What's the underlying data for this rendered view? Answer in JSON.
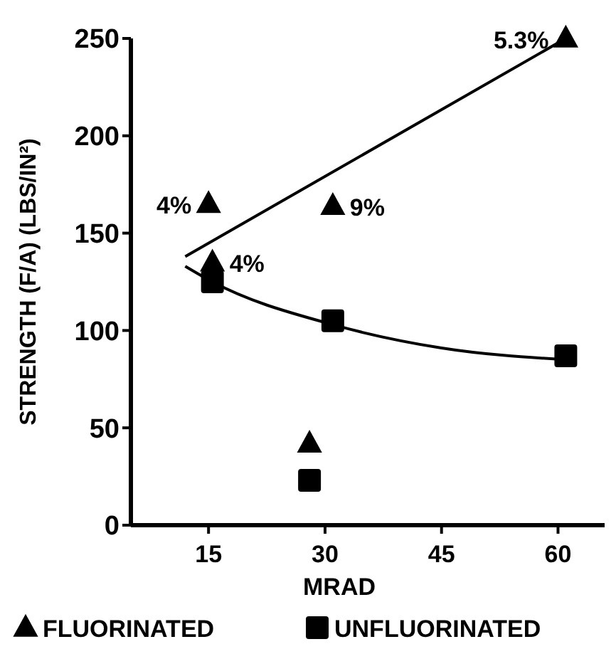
{
  "chart_data": {
    "type": "scatter",
    "xlabel": "MRAD",
    "ylabel": "STRENGTH (F/A)  (LBS/IN²)",
    "xlim": [
      5,
      66
    ],
    "xticks": [
      15,
      30,
      45,
      60
    ],
    "ylim": [
      0,
      250
    ],
    "yticks": [
      0,
      50,
      100,
      150,
      200,
      250
    ],
    "grid": false,
    "legend": "bottom",
    "series": [
      {
        "name": "FLUORINATED",
        "marker": "triangle",
        "color": "#000000",
        "x": [
          15,
          15.5,
          28,
          31,
          61
        ],
        "values": [
          165,
          135,
          42,
          164,
          250
        ]
      },
      {
        "name": "UNFLUORINATED",
        "marker": "square",
        "color": "#000000",
        "x": [
          15.5,
          28,
          31,
          61
        ],
        "values": [
          125,
          23,
          105,
          87
        ]
      },
      {
        "type": "line",
        "marker": "none",
        "line_style": "solid",
        "color": "#000000",
        "x": [
          12,
          61
        ],
        "values": [
          138,
          250
        ]
      },
      {
        "type": "line",
        "marker": "none",
        "line_style": "solid",
        "color": "#000000",
        "x": [
          12,
          15.5,
          31,
          45,
          61
        ],
        "values": [
          133,
          125,
          103,
          91,
          85
        ]
      }
    ],
    "annotations": [
      {
        "text": "4%",
        "x": 15,
        "y": 165
      },
      {
        "text": "4%",
        "x": 15.5,
        "y": 135
      },
      {
        "text": "9%",
        "x": 31,
        "y": 164
      },
      {
        "text": "5.3%",
        "x": 61,
        "y": 250
      }
    ]
  }
}
